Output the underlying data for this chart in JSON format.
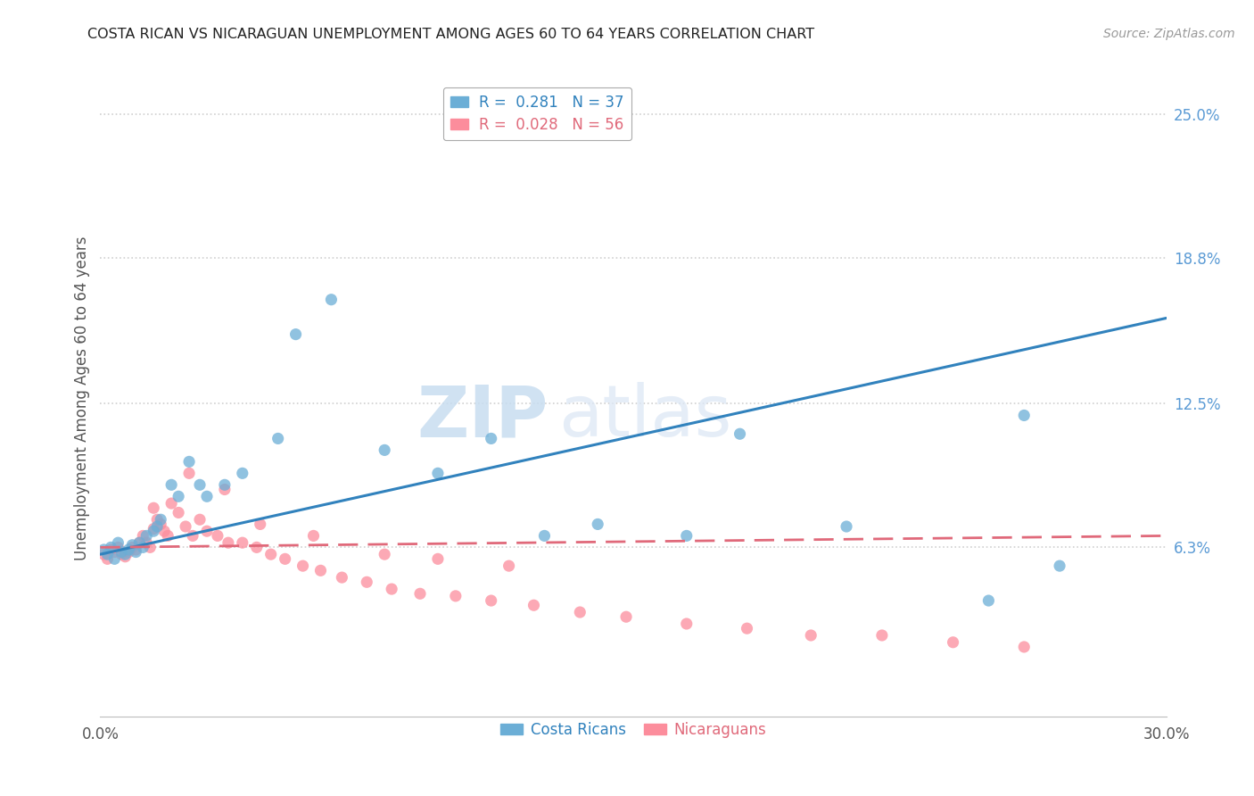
{
  "title": "COSTA RICAN VS NICARAGUAN UNEMPLOYMENT AMONG AGES 60 TO 64 YEARS CORRELATION CHART",
  "source": "Source: ZipAtlas.com",
  "ylabel": "Unemployment Among Ages 60 to 64 years",
  "xlim": [
    0.0,
    0.3
  ],
  "ylim": [
    -0.01,
    0.265
  ],
  "ytick_labels_right": [
    "6.3%",
    "12.5%",
    "18.8%",
    "25.0%"
  ],
  "ytick_values_right": [
    0.063,
    0.125,
    0.188,
    0.25
  ],
  "watermark_zip": "ZIP",
  "watermark_atlas": "atlas",
  "costa_ricans_color": "#6baed6",
  "nicaraguans_color": "#fc8d9c",
  "costa_ricans_line_color": "#3182bd",
  "nicaraguans_line_color": "#e0697a",
  "costa_ricans_x": [
    0.001,
    0.002,
    0.003,
    0.004,
    0.005,
    0.006,
    0.007,
    0.008,
    0.009,
    0.01,
    0.011,
    0.012,
    0.013,
    0.015,
    0.016,
    0.017,
    0.02,
    0.022,
    0.025,
    0.028,
    0.03,
    0.035,
    0.04,
    0.05,
    0.055,
    0.065,
    0.08,
    0.095,
    0.11,
    0.125,
    0.14,
    0.165,
    0.18,
    0.21,
    0.25,
    0.26,
    0.27
  ],
  "costa_ricans_y": [
    0.062,
    0.06,
    0.063,
    0.058,
    0.065,
    0.061,
    0.06,
    0.062,
    0.064,
    0.061,
    0.065,
    0.063,
    0.068,
    0.07,
    0.072,
    0.075,
    0.09,
    0.085,
    0.1,
    0.09,
    0.085,
    0.09,
    0.095,
    0.11,
    0.155,
    0.17,
    0.105,
    0.095,
    0.11,
    0.068,
    0.073,
    0.068,
    0.112,
    0.072,
    0.04,
    0.12,
    0.055
  ],
  "nicaraguans_x": [
    0.001,
    0.002,
    0.003,
    0.004,
    0.005,
    0.006,
    0.007,
    0.008,
    0.009,
    0.01,
    0.011,
    0.012,
    0.013,
    0.014,
    0.015,
    0.016,
    0.017,
    0.018,
    0.019,
    0.02,
    0.022,
    0.024,
    0.026,
    0.028,
    0.03,
    0.033,
    0.036,
    0.04,
    0.044,
    0.048,
    0.052,
    0.057,
    0.062,
    0.068,
    0.075,
    0.082,
    0.09,
    0.1,
    0.11,
    0.122,
    0.135,
    0.148,
    0.165,
    0.182,
    0.2,
    0.22,
    0.24,
    0.26,
    0.015,
    0.025,
    0.035,
    0.045,
    0.06,
    0.08,
    0.095,
    0.115
  ],
  "nicaraguans_y": [
    0.06,
    0.058,
    0.062,
    0.061,
    0.063,
    0.06,
    0.059,
    0.061,
    0.063,
    0.062,
    0.065,
    0.068,
    0.065,
    0.063,
    0.08,
    0.075,
    0.073,
    0.07,
    0.068,
    0.082,
    0.078,
    0.072,
    0.068,
    0.075,
    0.07,
    0.068,
    0.065,
    0.065,
    0.063,
    0.06,
    0.058,
    0.055,
    0.053,
    0.05,
    0.048,
    0.045,
    0.043,
    0.042,
    0.04,
    0.038,
    0.035,
    0.033,
    0.03,
    0.028,
    0.025,
    0.025,
    0.022,
    0.02,
    0.071,
    0.095,
    0.088,
    0.073,
    0.068,
    0.06,
    0.058,
    0.055
  ],
  "costa_ricans_trend_x": [
    0.0,
    0.3
  ],
  "costa_ricans_trend_y": [
    0.06,
    0.162
  ],
  "nicaraguans_trend_x": [
    0.0,
    0.3
  ],
  "nicaraguans_trend_y": [
    0.063,
    0.068
  ],
  "background_color": "#ffffff",
  "grid_color": "#d0d0d0",
  "title_color": "#222222",
  "axis_label_color": "#555555",
  "right_tick_color": "#5b9bd5",
  "legend_label_cr": "R =  0.281   N = 37",
  "legend_label_ni": "R =  0.028   N = 56",
  "bottom_legend_cr": "Costa Ricans",
  "bottom_legend_ni": "Nicaraguans"
}
